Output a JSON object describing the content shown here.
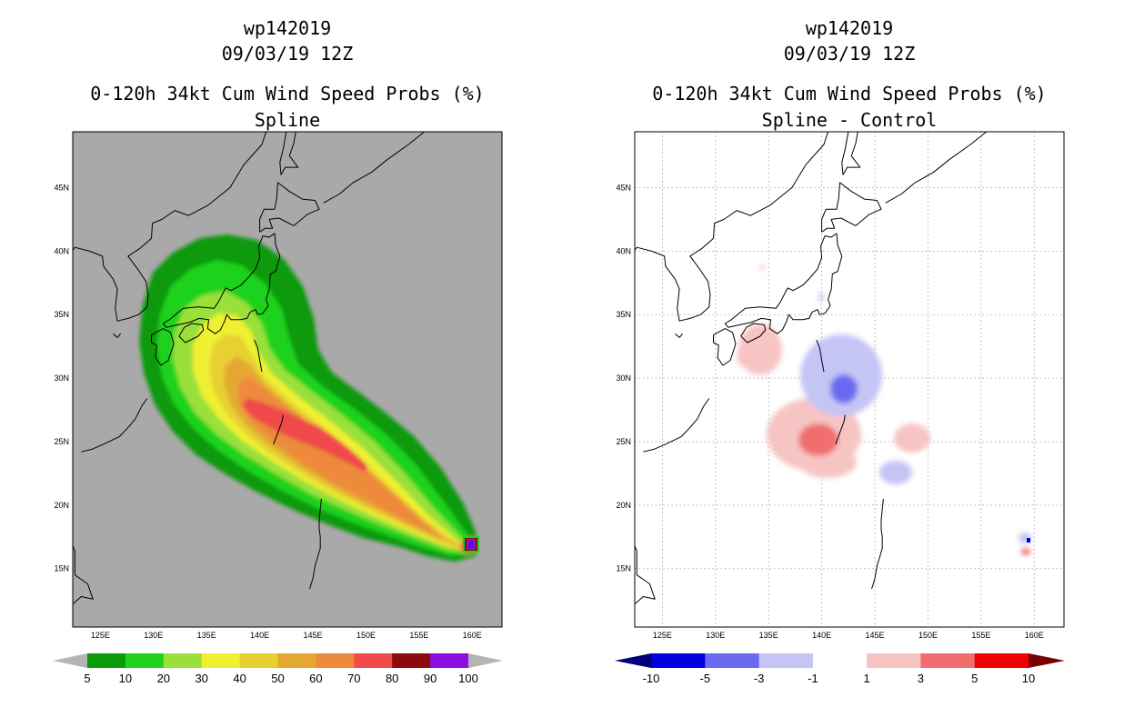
{
  "colors": {
    "land_left": "#a9a9a9",
    "coast": "#000000",
    "grid": "#9a9a9a",
    "frame": "#000000"
  },
  "chart_data": [
    {
      "type": "heatmap",
      "title_lines": [
        "wp142019",
        "09/03/19 12Z",
        "0-120h 34kt Cum Wind Speed Probs (%)",
        "Spline"
      ],
      "x_ticks": [
        "125E",
        "130E",
        "135E",
        "140E",
        "145E",
        "150E",
        "155E",
        "160E"
      ],
      "y_ticks": [
        "15N",
        "20N",
        "25N",
        "30N",
        "35N",
        "40N",
        "45N"
      ],
      "x_tick_values": [
        125,
        130,
        135,
        140,
        145,
        150,
        155,
        160
      ],
      "y_tick_values": [
        15,
        20,
        25,
        30,
        35,
        40,
        45
      ],
      "xlim": [
        122.4,
        162.8
      ],
      "ylim": [
        10.4,
        49.4
      ],
      "grid": false,
      "colorbar": {
        "labels": [
          "5",
          "10",
          "20",
          "30",
          "40",
          "50",
          "60",
          "70",
          "80",
          "90",
          "100"
        ],
        "bin_colors": [
          "#0a9a0a",
          "#1ed21e",
          "#9ae03a",
          "#f0f032",
          "#e6d030",
          "#e4a830",
          "#ee8a3a",
          "#f04a4a",
          "#8c0a0a",
          "#8a10e0"
        ],
        "lower_color": "#b4b4b4",
        "upper_color": "#b4b4b4"
      },
      "field": {
        "description": "probability swath along forecast track from 160.8E 17.2N toward Japan",
        "track": [
          [
            160.8,
            17.2
          ],
          [
            150.0,
            22.7
          ],
          [
            140.0,
            28.5
          ],
          [
            136.5,
            32.8
          ],
          [
            138.0,
            38.0
          ]
        ],
        "peak_value": 100
      }
    },
    {
      "type": "heatmap",
      "title_lines": [
        "wp142019",
        "09/03/19 12Z",
        "0-120h 34kt Cum Wind Speed Probs (%)",
        "Spline - Control"
      ],
      "x_ticks": [
        "125E",
        "130E",
        "135E",
        "140E",
        "145E",
        "150E",
        "155E",
        "160E"
      ],
      "y_ticks": [
        "15N",
        "20N",
        "25N",
        "30N",
        "35N",
        "40N",
        "45N"
      ],
      "x_tick_values": [
        125,
        130,
        135,
        140,
        145,
        150,
        155,
        160
      ],
      "y_tick_values": [
        15,
        20,
        25,
        30,
        35,
        40,
        45
      ],
      "xlim": [
        122.4,
        162.8
      ],
      "ylim": [
        10.4,
        49.4
      ],
      "grid": true,
      "colorbar": {
        "labels": [
          "-10",
          "-5",
          "-3",
          "-1",
          "1",
          "3",
          "5",
          "10"
        ],
        "bin_colors": [
          "#0000e0",
          "#6a6af0",
          "#c4c4f5",
          "#ffffff",
          "#f7c4c4",
          "#f06e6e",
          "#f00000"
        ],
        "lower_color": "#00007a",
        "upper_color": "#7a0000"
      },
      "field": {
        "description": "difference field: positive (red) south of Japan and near 142E 25N, negative (blue) near 143E 29N"
      }
    }
  ]
}
